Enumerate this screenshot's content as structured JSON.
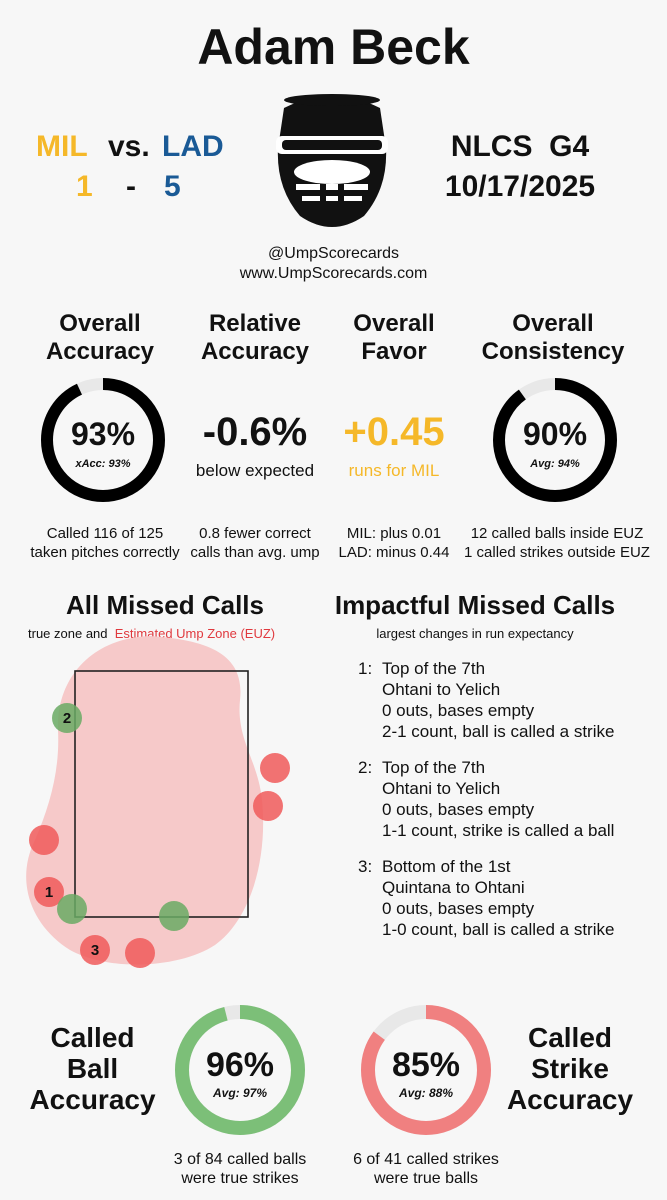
{
  "title": "Adam Beck",
  "game": {
    "away_team": "MIL",
    "vs": "vs.",
    "home_team": "LAD",
    "away_score": "1",
    "dash": "-",
    "home_score": "5",
    "series": "NLCS",
    "game_no": "G4",
    "date": "10/17/2025"
  },
  "social": {
    "handle": "@UmpScorecards",
    "site": "www.UmpScorecards.com"
  },
  "stats": {
    "overall_accuracy": {
      "title_line1": "Overall",
      "title_line2": "Accuracy",
      "value": "93%",
      "sub": "xAcc: 93%",
      "fraction": 0.93,
      "note_line1": "Called 116 of 125",
      "note_line2": "taken pitches correctly"
    },
    "relative_accuracy": {
      "title_line1": "Relative",
      "title_line2": "Accuracy",
      "value": "-0.6%",
      "sub": "below expected",
      "note_line1": "0.8 fewer correct",
      "note_line2": "calls than avg. ump"
    },
    "overall_favor": {
      "title_line1": "Overall",
      "title_line2": "Favor",
      "value": "+0.45",
      "sub": "runs for MIL",
      "note_line1": "MIL: plus 0.01",
      "note_line2": "LAD: minus 0.44"
    },
    "overall_consistency": {
      "title_line1": "Overall",
      "title_line2": "Consistency",
      "value": "90%",
      "sub": "Avg: 94%",
      "fraction": 0.9,
      "note_line1": "12 called balls inside EUZ",
      "note_line2": "1 called strikes outside EUZ"
    }
  },
  "missed_calls": {
    "title": "All Missed Calls",
    "legend_text": "true zone and",
    "legend_euz": "Estimated Ump Zone (EUZ)",
    "colors": {
      "ball_missed": "#6aaa64",
      "strike_missed": "#f05a5a",
      "euz_fill": "#f6c9c9"
    },
    "points": [
      {
        "label": "2",
        "color": "green"
      },
      {
        "label": "",
        "color": "red"
      },
      {
        "label": "",
        "color": "red"
      },
      {
        "label": "",
        "color": "red"
      },
      {
        "label": "1",
        "color": "red"
      },
      {
        "label": "",
        "color": "green"
      },
      {
        "label": "",
        "color": "green"
      },
      {
        "label": "3",
        "color": "red"
      },
      {
        "label": "",
        "color": "red"
      }
    ]
  },
  "impactful": {
    "title": "Impactful Missed Calls",
    "subtitle": "largest changes in run expectancy",
    "items": [
      {
        "num": "1:",
        "inning": "Top of the 7th",
        "matchup": "Ohtani to Yelich",
        "situation": "0 outs, bases empty",
        "call": "2-1 count, ball is called a strike"
      },
      {
        "num": "2:",
        "inning": "Top of the 7th",
        "matchup": "Ohtani to Yelich",
        "situation": "0 outs, bases empty",
        "call": "1-1 count, strike is called a ball"
      },
      {
        "num": "3:",
        "inning": "Bottom of the 1st",
        "matchup": "Quintana to Ohtani",
        "situation": "0 outs, bases empty",
        "call": "1-0 count, ball is called a strike"
      }
    ]
  },
  "called_ball": {
    "title_line1": "Called",
    "title_line2": "Ball",
    "title_line3": "Accuracy",
    "value": "96%",
    "sub": "Avg: 97%",
    "fraction": 0.96,
    "color": "#7cbf78",
    "note_line1": "3 of 84 called balls",
    "note_line2": "were true strikes"
  },
  "called_strike": {
    "title_line1": "Called",
    "title_line2": "Strike",
    "title_line3": "Accuracy",
    "value": "85%",
    "sub": "Avg: 88%",
    "fraction": 0.85,
    "color": "#f08080",
    "note_line1": "6 of 41 called strikes",
    "note_line2": "were true balls"
  },
  "chart_data": [
    {
      "type": "donut",
      "title": "Overall Accuracy",
      "value": 93,
      "ylim": [
        0,
        100
      ],
      "color": "#000000"
    },
    {
      "type": "donut",
      "title": "Overall Consistency",
      "value": 90,
      "ylim": [
        0,
        100
      ],
      "color": "#000000"
    },
    {
      "type": "scatter",
      "title": "All Missed Calls",
      "series": [
        {
          "name": "missed balls",
          "color": "#6aaa64",
          "count": 3
        },
        {
          "name": "missed strikes",
          "color": "#f05a5a",
          "count": 6
        }
      ]
    },
    {
      "type": "donut",
      "title": "Called Ball Accuracy",
      "value": 96,
      "ylim": [
        0,
        100
      ],
      "color": "#7cbf78"
    },
    {
      "type": "donut",
      "title": "Called Strike Accuracy",
      "value": 85,
      "ylim": [
        0,
        100
      ],
      "color": "#f08080"
    }
  ]
}
